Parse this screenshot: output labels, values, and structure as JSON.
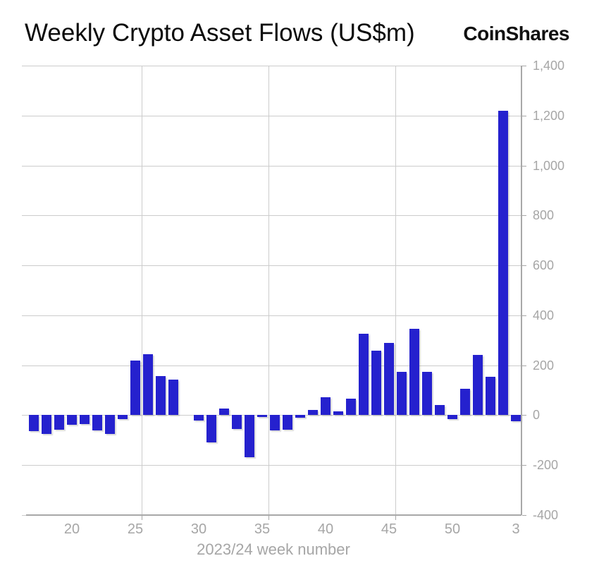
{
  "brand": "CoinShares",
  "chart_data": {
    "type": "bar",
    "title": "Weekly Crypto Asset Flows (US$m)",
    "xlabel": "2023/24 week number",
    "ylabel": "",
    "categories": [
      "17",
      "18",
      "19",
      "20",
      "21",
      "22",
      "23",
      "24",
      "25",
      "26",
      "27",
      "28",
      "29",
      "30",
      "31",
      "32",
      "33",
      "34",
      "35",
      "36",
      "37",
      "38",
      "39",
      "40",
      "41",
      "42",
      "43",
      "44",
      "45",
      "46",
      "47",
      "48",
      "49",
      "50",
      "51",
      "52",
      "1",
      "2",
      "3"
    ],
    "values": [
      -64,
      -74,
      -57,
      -38,
      -36,
      -62,
      -74,
      -15,
      218,
      245,
      157,
      142,
      0,
      -21,
      -109,
      27,
      -55,
      -169,
      -8,
      -60,
      -58,
      -11,
      21,
      72,
      15,
      66,
      325,
      259,
      290,
      174,
      346,
      174,
      40,
      -15,
      105,
      242,
      153,
      1220,
      -24
    ],
    "ylim": [
      -400,
      1400
    ],
    "yticks": [
      {
        "value": 1400,
        "label": "1,400"
      },
      {
        "value": 1200,
        "label": "1,200"
      },
      {
        "value": 1000,
        "label": "1,000"
      },
      {
        "value": 800,
        "label": "800"
      },
      {
        "value": 600,
        "label": "600"
      },
      {
        "value": 400,
        "label": "400"
      },
      {
        "value": 200,
        "label": "200"
      },
      {
        "value": 0,
        "label": "0"
      },
      {
        "value": -200,
        "label": "-200"
      },
      {
        "value": -400,
        "label": "-400"
      }
    ],
    "xticks": [
      {
        "category": "20",
        "label": "20"
      },
      {
        "category": "25",
        "label": "25"
      },
      {
        "category": "30",
        "label": "30"
      },
      {
        "category": "35",
        "label": "35"
      },
      {
        "category": "40",
        "label": "40"
      },
      {
        "category": "45",
        "label": "45"
      },
      {
        "category": "50",
        "label": "50"
      },
      {
        "category": "3",
        "label": "3"
      }
    ],
    "vertical_gridline_boundaries": [
      8.5,
      18.5,
      28.5
    ],
    "grid": true,
    "legend": "none",
    "colors": {
      "bar": "#2521CE",
      "gridline": "#cccccc",
      "axis": "#a8a8a8",
      "tick_label": "#a6a6a6",
      "title_text": "#0b0b0b",
      "background": "#ffffff"
    }
  }
}
